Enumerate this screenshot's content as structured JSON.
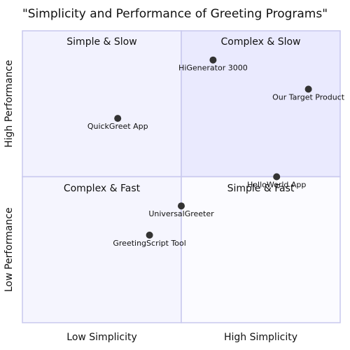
{
  "chart_data": {
    "type": "scatter",
    "title": "\"Simplicity and Performance of Greeting Programs\"",
    "x_axis": {
      "low_label": "Low Simplicity",
      "high_label": "High Simplicity",
      "range": [
        0,
        1
      ]
    },
    "y_axis": {
      "low_label": "Low Performance",
      "high_label": "High Performance",
      "range": [
        0,
        1
      ]
    },
    "quadrants": {
      "top_left": "Simple & Slow",
      "top_right": "Complex & Slow",
      "bottom_left": "Complex & Fast",
      "bottom_right": "Simple & Fast"
    },
    "points": [
      {
        "label": "HiGenerator 3000",
        "x": 0.6,
        "y": 0.9
      },
      {
        "label": "Our Target Product",
        "x": 0.9,
        "y": 0.8
      },
      {
        "label": "QuickGreet App",
        "x": 0.3,
        "y": 0.7
      },
      {
        "label": "HelloWorld App",
        "x": 0.8,
        "y": 0.5
      },
      {
        "label": "UniversalGreeter",
        "x": 0.5,
        "y": 0.4
      },
      {
        "label": "GreetingScript Tool",
        "x": 0.4,
        "y": 0.3
      }
    ],
    "colors": {
      "quadrant_top_left": "#f2f2fe",
      "quadrant_top_right": "#eaeafe",
      "quadrant_bottom_left": "#f5f5fe",
      "quadrant_bottom_right": "#fbfbff",
      "border": "#c8c8ee",
      "point": "#333333"
    }
  }
}
